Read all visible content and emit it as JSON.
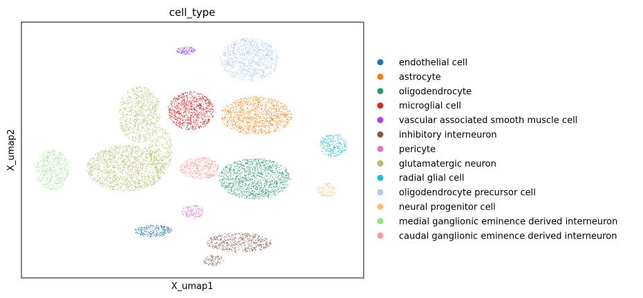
{
  "chart_data": {
    "type": "scatter",
    "title": "cell_type",
    "xlabel": "X_umap1",
    "ylabel": "X_umap2",
    "xlim": [
      0,
      100
    ],
    "ylim": [
      0,
      100
    ],
    "grid": false,
    "legend_position": "right",
    "series": [
      {
        "name": "endothelial cell",
        "color": "#1f77b4",
        "clusters": [
          {
            "cx": 38.5,
            "cy": 18.5,
            "rx": 5.5,
            "ry": 2.3,
            "n": 260
          }
        ]
      },
      {
        "name": "astrocyte",
        "color": "#ff7f0e",
        "clusters": [
          {
            "cx": 68.5,
            "cy": 63.5,
            "rx": 10.5,
            "ry": 7.5,
            "n": 1100
          }
        ]
      },
      {
        "name": "oligodendrocyte",
        "color": "#279e68",
        "clusters": [
          {
            "cx": 68.0,
            "cy": 39.0,
            "rx": 10.5,
            "ry": 8.0,
            "n": 1300
          }
        ]
      },
      {
        "name": "microglial cell",
        "color": "#d62728",
        "clusters": [
          {
            "cx": 49.5,
            "cy": 65.5,
            "rx": 6.8,
            "ry": 7.5,
            "n": 900
          }
        ]
      },
      {
        "name": "vascular associated smooth muscle cell",
        "color": "#aa40fc",
        "clusters": [
          {
            "cx": 48.0,
            "cy": 89.0,
            "rx": 2.8,
            "ry": 1.5,
            "n": 120
          }
        ]
      },
      {
        "name": "inhibitory interneuron",
        "color": "#8c564b",
        "clusters": [
          {
            "cx": 63.5,
            "cy": 14.0,
            "rx": 9.5,
            "ry": 3.8,
            "n": 520
          },
          {
            "cx": 56.0,
            "cy": 7.0,
            "rx": 3.0,
            "ry": 2.2,
            "n": 90
          }
        ]
      },
      {
        "name": "pericyte",
        "color": "#e377c2",
        "clusters": [
          {
            "cx": 50.0,
            "cy": 26.0,
            "rx": 3.3,
            "ry": 2.7,
            "n": 140
          }
        ]
      },
      {
        "name": "glutamatergic neuron",
        "color": "#b5bd61",
        "clusters": [
          {
            "cx": 30.5,
            "cy": 43.0,
            "rx": 11.5,
            "ry": 9.0,
            "n": 1400
          },
          {
            "cx": 34.5,
            "cy": 64.0,
            "rx": 6.3,
            "ry": 11.0,
            "n": 800
          },
          {
            "cx": 40.5,
            "cy": 50.0,
            "rx": 3.5,
            "ry": 9.0,
            "n": 300
          }
        ]
      },
      {
        "name": "radial glial cell",
        "color": "#17becf",
        "clusters": [
          {
            "cx": 91.0,
            "cy": 52.0,
            "rx": 4.0,
            "ry": 4.5,
            "n": 260
          }
        ]
      },
      {
        "name": "oligodendrocyte precursor cell",
        "color": "#aec7e8",
        "clusters": [
          {
            "cx": 66.5,
            "cy": 85.5,
            "rx": 8.5,
            "ry": 8.5,
            "n": 1000
          }
        ]
      },
      {
        "name": "neural progenitor cell",
        "color": "#ffbb78",
        "clusters": [
          {
            "cx": 89.0,
            "cy": 34.5,
            "rx": 2.8,
            "ry": 3.0,
            "n": 110
          }
        ]
      },
      {
        "name": "medial ganglionic eminence derived interneuron",
        "color": "#98df8a",
        "clusters": [
          {
            "cx": 9.0,
            "cy": 42.5,
            "rx": 4.8,
            "ry": 8.0,
            "n": 450
          }
        ]
      },
      {
        "name": "caudal ganglionic eminence derived interneuron",
        "color": "#ff9896",
        "clusters": [
          {
            "cx": 52.0,
            "cy": 43.0,
            "rx": 5.8,
            "ry": 4.5,
            "n": 420
          }
        ]
      }
    ]
  }
}
